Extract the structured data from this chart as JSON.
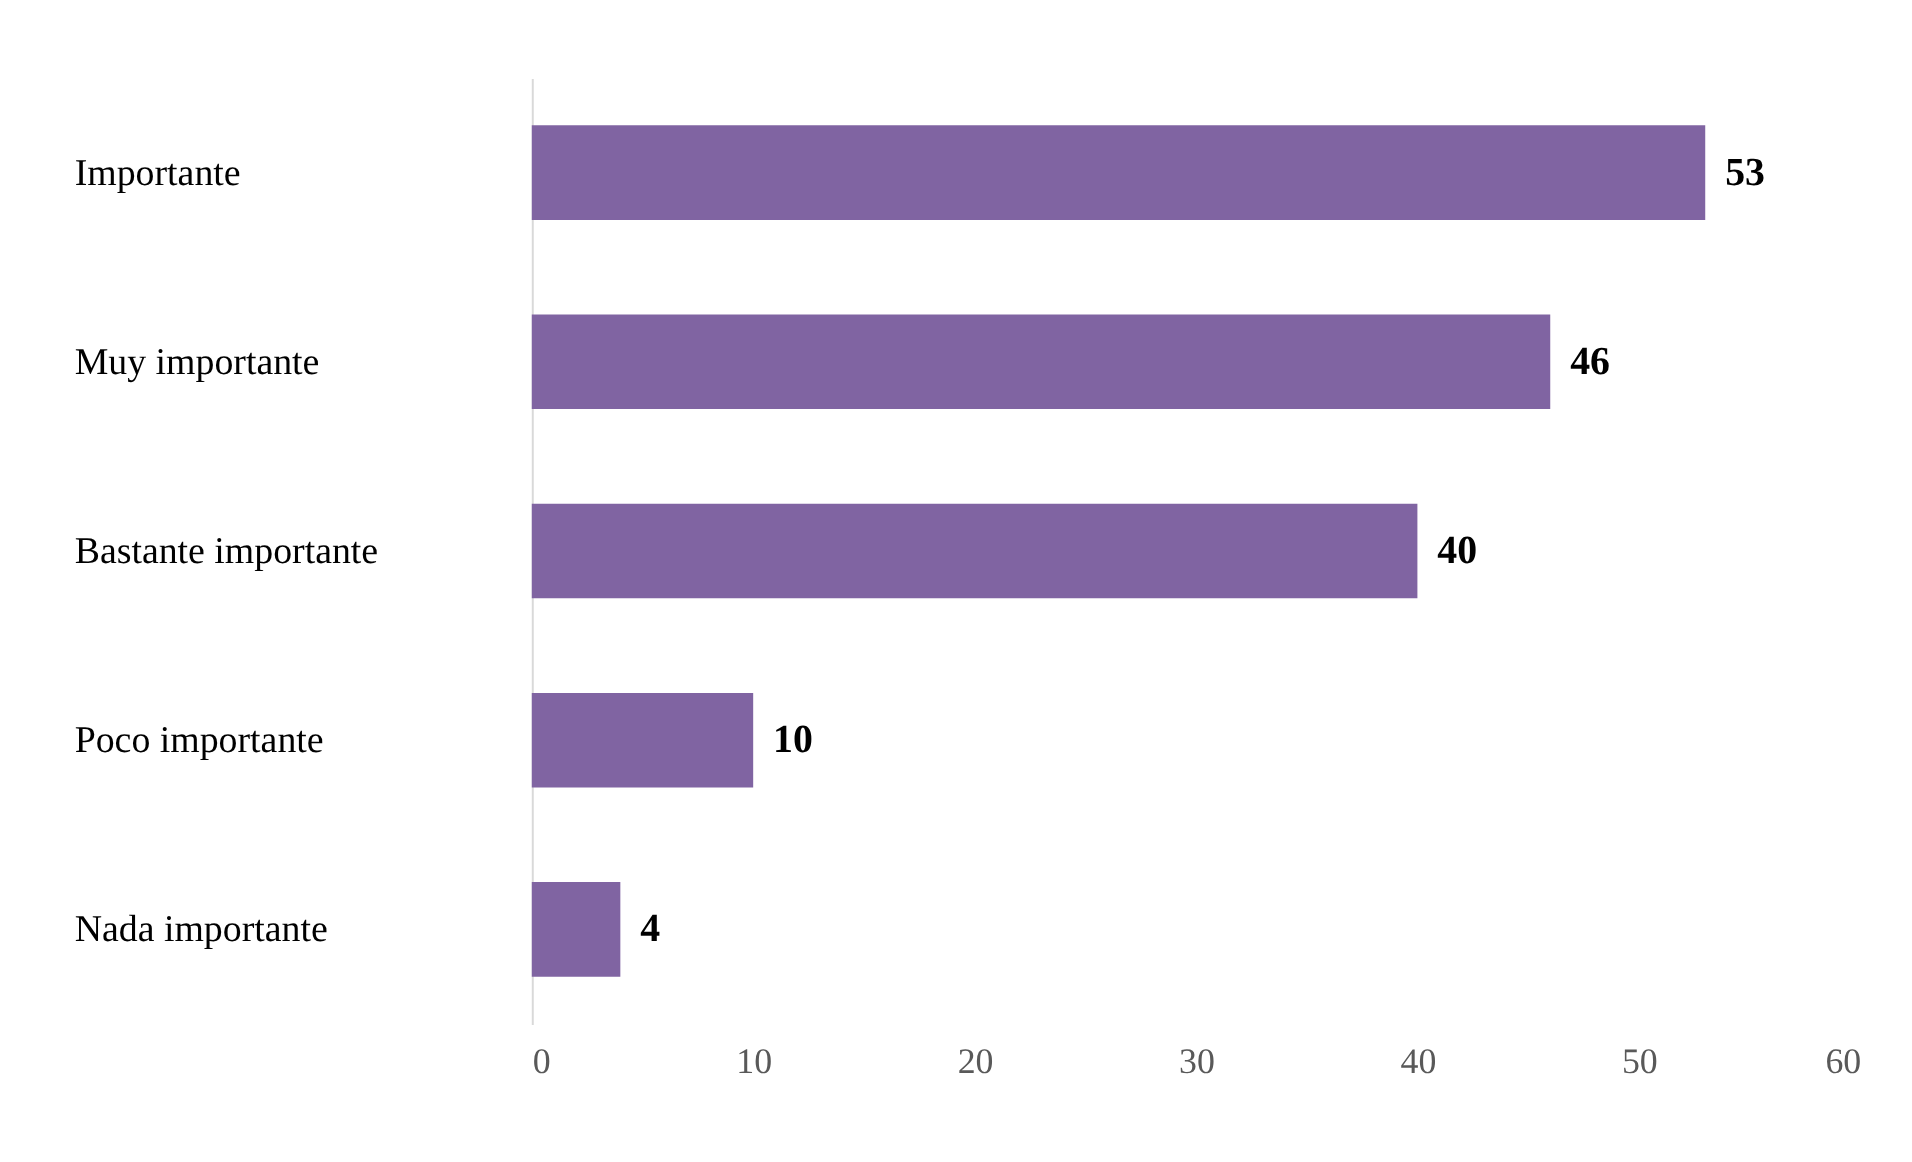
{
  "chart_data": {
    "type": "bar",
    "orientation": "horizontal",
    "categories": [
      "Importante",
      "Muy importante",
      "Bastante importante",
      "Poco importante",
      "Nada importante"
    ],
    "values": [
      53,
      46,
      40,
      10,
      4
    ],
    "color": "#8064a2",
    "xlim": [
      0,
      60
    ],
    "xticks": [
      0,
      10,
      20,
      30,
      40,
      50,
      60
    ],
    "grid": false,
    "data_labels": true
  }
}
